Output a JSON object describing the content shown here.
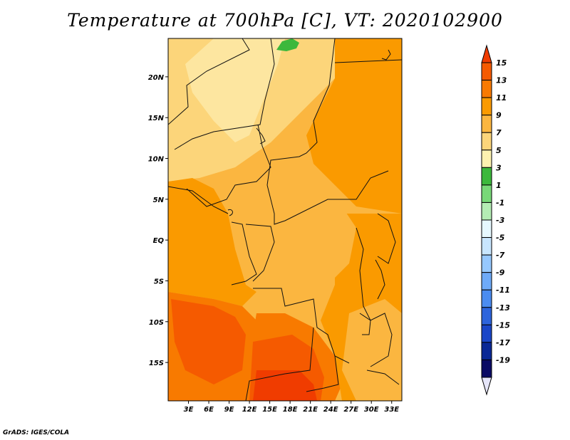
{
  "title": "Temperature at 700hPa [C], VT: 2020102900",
  "credit": "GrADS: IGES/COLA",
  "map": {
    "lat_ticks": [
      "20N",
      "15N",
      "10N",
      "5N",
      "EQ",
      "5S",
      "10S",
      "15S"
    ],
    "lon_ticks": [
      "3E",
      "6E",
      "9E",
      "12E",
      "15E",
      "18E",
      "21E",
      "24E",
      "27E",
      "30E",
      "33E"
    ],
    "lon_range": [
      0,
      34.5
    ],
    "lat_range": [
      -19.7,
      24.7
    ]
  },
  "colorbar": {
    "labels": [
      "15",
      "13",
      "11",
      "9",
      "7",
      "5",
      "3",
      "1",
      "-1",
      "-3",
      "-5",
      "-7",
      "-9",
      "-11",
      "-13",
      "-15",
      "-17",
      "-19"
    ],
    "colors": [
      "#f03c00",
      "#f55a00",
      "#f87a00",
      "#fa9a00",
      "#fbb640",
      "#fcd57a",
      "#fdf2b0",
      "#3cb83c",
      "#78d878",
      "#b4ecb4",
      "#e6f8ff",
      "#c8e6ff",
      "#96c8ff",
      "#6eaaf8",
      "#4b8cf0",
      "#2d64dc",
      "#1a46c8",
      "#0a2896",
      "#0a0a64"
    ],
    "top_triangle_color": "#f03c00",
    "bottom_triangle_color": "#e6e6fa"
  }
}
